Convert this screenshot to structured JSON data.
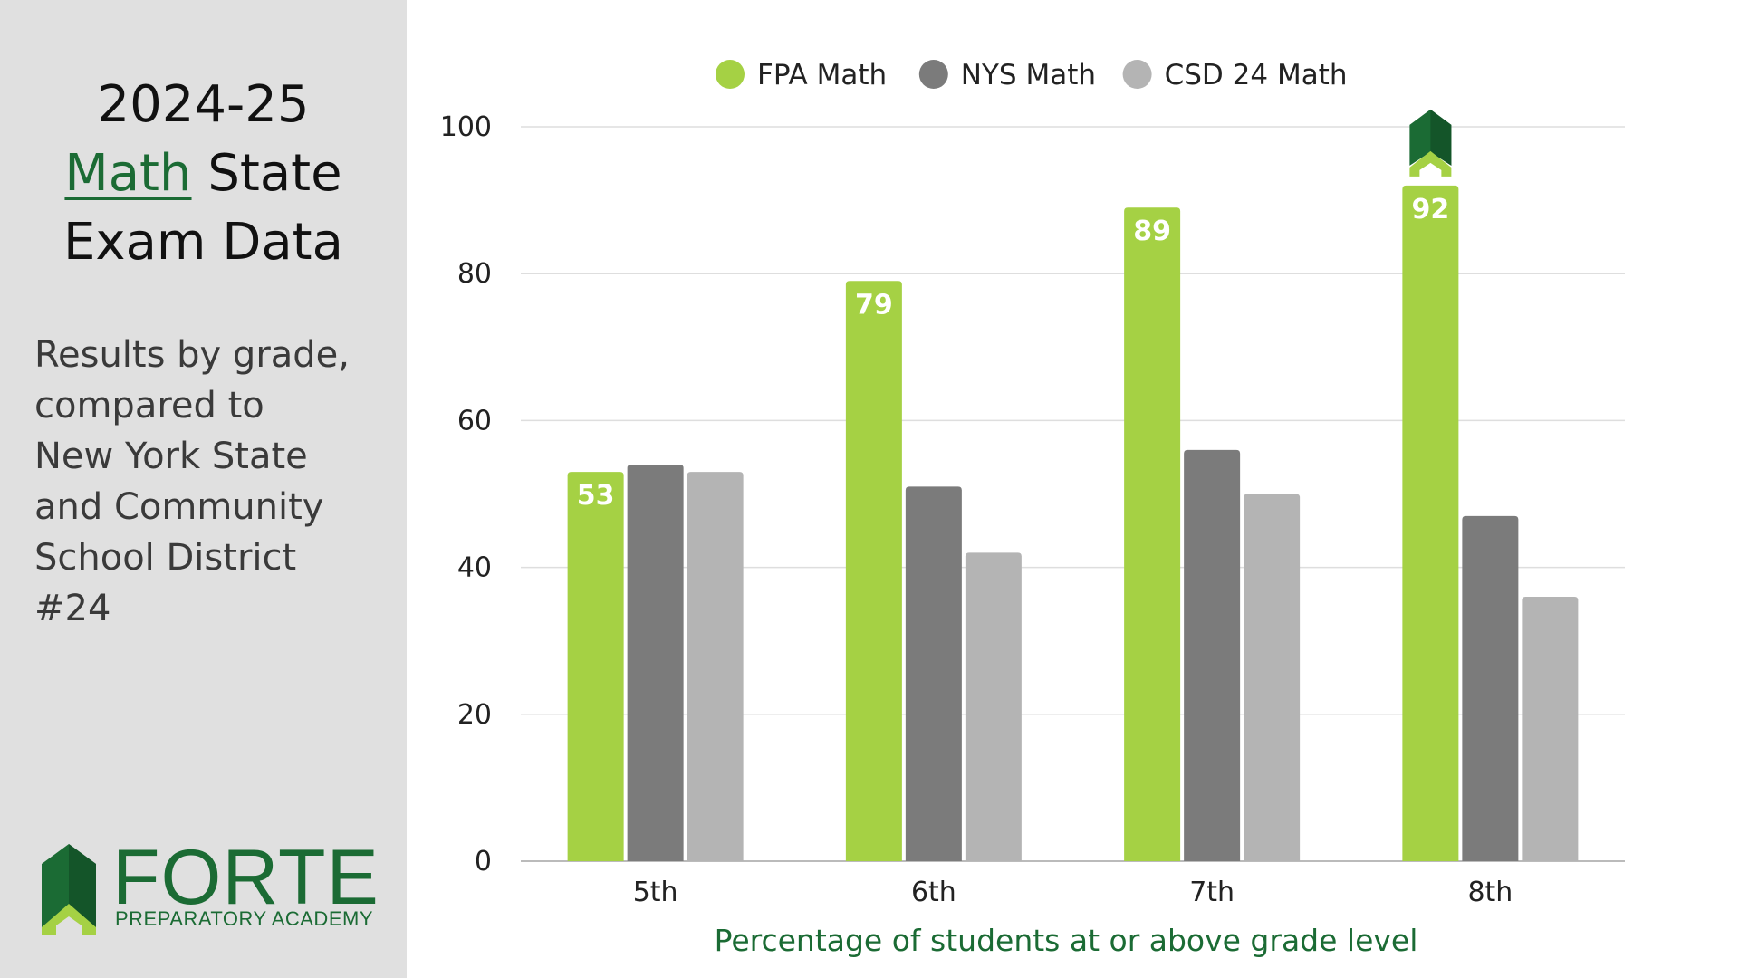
{
  "side_panel": {
    "title_line1": "2024-25",
    "title_math": "Math",
    "title_state": "State",
    "title_line3": "Exam Data",
    "subtitle_lines": [
      "Results by grade,",
      "compared to",
      "New York State",
      "and Community",
      "School District",
      "#24"
    ]
  },
  "logo": {
    "name": "FORTE",
    "tagline": "PREPARATORY ACADEMY",
    "icon": "forte-house-chevron-icon"
  },
  "colors": {
    "fpa": "#a5d144",
    "nys": "#7b7b7b",
    "csd": "#b4b4b4",
    "brand_green": "#1b6b34",
    "panel": "#e0e0e0"
  },
  "chart_data": {
    "type": "bar",
    "categories": [
      "5th",
      "6th",
      "7th",
      "8th"
    ],
    "series": [
      {
        "name": "FPA Math",
        "values": [
          53,
          79,
          89,
          92
        ],
        "color": "#a5d144",
        "labeled": true
      },
      {
        "name": "NYS Math",
        "values": [
          54,
          51,
          56,
          47
        ],
        "color": "#7b7b7b",
        "labeled": false
      },
      {
        "name": "CSD 24 Math",
        "values": [
          53,
          42,
          50,
          36
        ],
        "color": "#b4b4b4",
        "labeled": false
      }
    ],
    "data_labels": [
      "53",
      "79",
      "89",
      "92"
    ],
    "xlabel": "Percentage of students at or above grade level",
    "ylabel": "",
    "ylim": [
      0,
      100
    ],
    "yticks": [
      0,
      20,
      40,
      60,
      80,
      100
    ],
    "grid": true,
    "legend_position": "top-center",
    "annotation_icon": "forte-house-chevron-icon"
  }
}
